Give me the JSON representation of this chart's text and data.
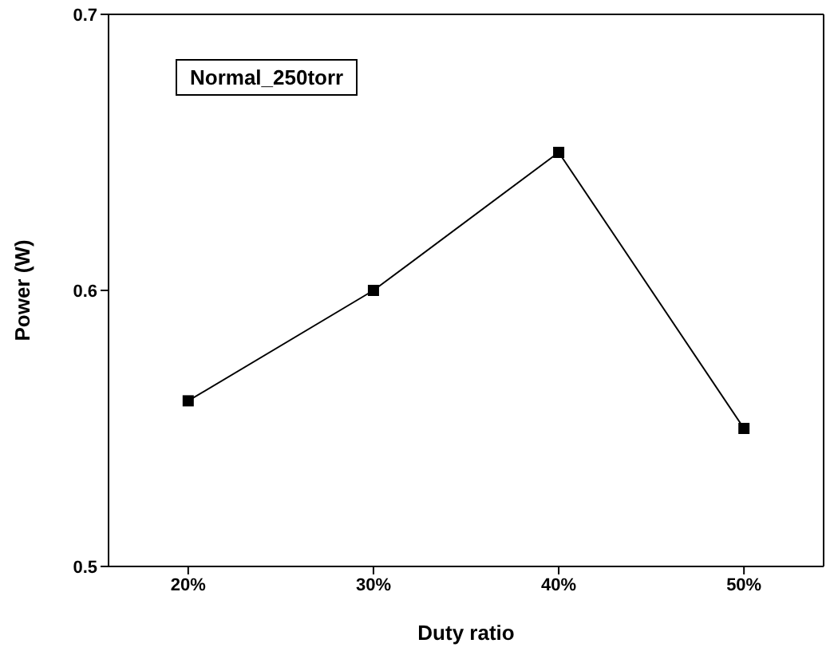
{
  "chart_data": {
    "type": "line",
    "xlabel": "Duty ratio",
    "ylabel": "Power (W)",
    "annotations": [
      "Normal_250torr"
    ],
    "categories": [
      "20%",
      "30%",
      "40%",
      "50%"
    ],
    "series": [
      {
        "color": "#000000",
        "values": [
          0.56,
          0.6,
          0.65,
          0.55
        ]
      }
    ],
    "ylim": [
      0.5,
      0.7
    ],
    "yticks": [
      0.5,
      0.6,
      0.7
    ],
    "marker": "square",
    "line_style": "solid"
  }
}
